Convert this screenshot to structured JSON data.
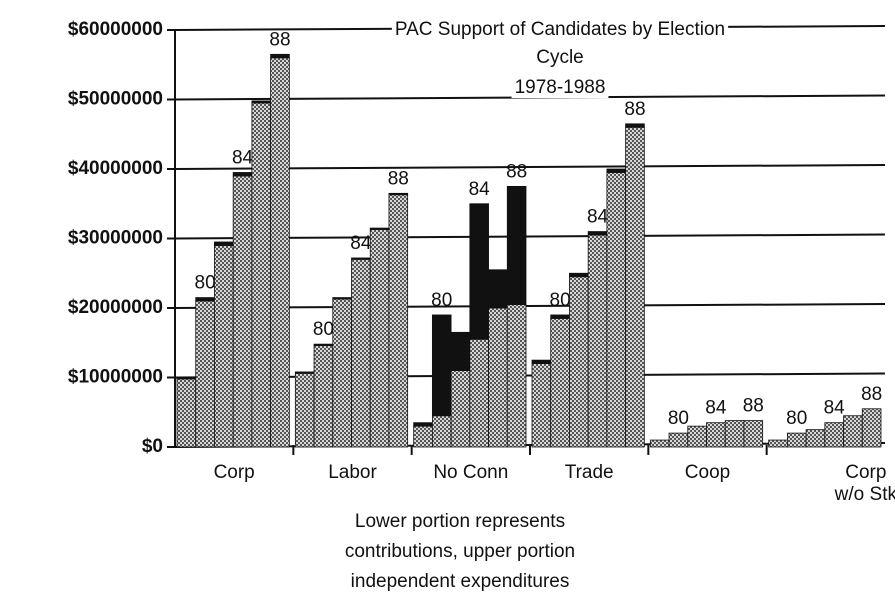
{
  "chart_data": {
    "type": "stacked_bar",
    "title": [
      "PAC Support of Candidates by Election",
      "Cycle",
      "1978-1988"
    ],
    "note": [
      "Lower portion represents",
      "contributions, upper portion",
      "independent expenditures"
    ],
    "categories": [
      "Corp",
      "Labor",
      "No Conn",
      "Trade",
      "Coop",
      [
        "Corp",
        "w/o  Stk"
      ]
    ],
    "cycle_labels": [
      null,
      "80",
      null,
      "84",
      null,
      "88"
    ],
    "series": [
      {
        "color": "#8c8c8c",
        "pattern": "dots",
        "values": [
          [
            9800000.0,
            21000000.0,
            29000000.0,
            39000000.0,
            49500000.0,
            56000000.0
          ],
          [
            10600000.0,
            14600000.0,
            21300000.0,
            27000000.0,
            31300000.0,
            36300000.0
          ],
          [
            3000000.0,
            4500000.0,
            11000000.0,
            15500000.0,
            20000000.0,
            20500000.0
          ],
          [
            12000000.0,
            18500000.0,
            24500000.0,
            30500000.0,
            39500000.0,
            46000000.0
          ],
          [
            1000000.0,
            2000000.0,
            3000000.0,
            3500000.0,
            3800000.0,
            3800000.0
          ],
          [
            1000000.0,
            2000000.0,
            2500000.0,
            3500000.0,
            4500000.0,
            5500000.0
          ]
        ]
      },
      {
        "color": "#111111",
        "pattern": "solid",
        "values": [
          [
            200000.0,
            500000.0,
            500000.0,
            500000.0,
            300000.0,
            500000.0
          ],
          [
            200000.0,
            200000.0,
            200000.0,
            200000.0,
            200000.0,
            200000.0
          ],
          [
            500000.0,
            14500000.0,
            5500000.0,
            19500000.0,
            5500000.0,
            17000000.0
          ],
          [
            500000.0,
            500000.0,
            500000.0,
            500000.0,
            500000.0,
            500000.0
          ],
          [
            0,
            0,
            0,
            0,
            0,
            0
          ],
          [
            0,
            0,
            0,
            0,
            0,
            0
          ]
        ]
      }
    ],
    "ylim": [
      0,
      60000000
    ],
    "yticks": [
      {
        "value": 0,
        "label": "$0"
      },
      {
        "value": 10000000,
        "label": "$10000000"
      },
      {
        "value": 20000000,
        "label": "$20000000"
      },
      {
        "value": 30000000,
        "label": "$30000000"
      },
      {
        "value": 40000000,
        "label": "$40000000"
      },
      {
        "value": 50000000,
        "label": "$50000000"
      },
      {
        "value": 60000000,
        "label": "$60000000"
      }
    ],
    "grid": true
  }
}
